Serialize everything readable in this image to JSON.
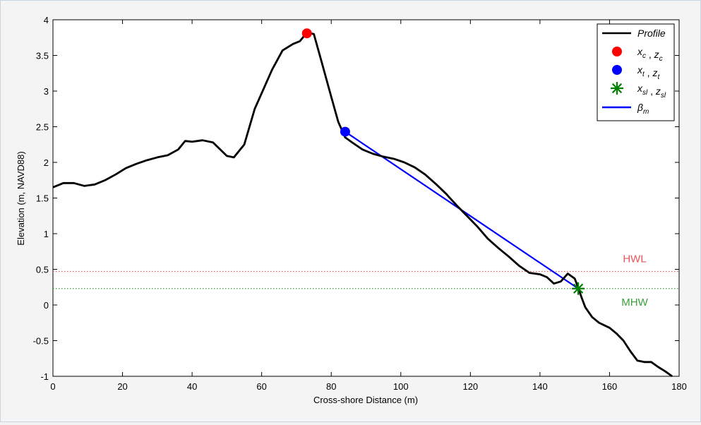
{
  "chart_data": {
    "type": "line",
    "xlabel": "Cross-shore Distance (m)",
    "ylabel": "Elevation (m, NAVD88)",
    "xlim": [
      0,
      180
    ],
    "ylim": [
      -1,
      4
    ],
    "xticks": [
      0,
      20,
      40,
      60,
      80,
      100,
      120,
      140,
      160,
      180
    ],
    "yticks": [
      -1,
      -0.5,
      0,
      0.5,
      1,
      1.5,
      2,
      2.5,
      3,
      3.5,
      4
    ],
    "xtick_labels": [
      "0",
      "20",
      "40",
      "60",
      "80",
      "100",
      "120",
      "140",
      "160",
      "180"
    ],
    "ytick_labels": [
      "-1",
      "-0.5",
      "0",
      "0.5",
      "1",
      "1.5",
      "2",
      "2.5",
      "3",
      "3.5",
      "4"
    ],
    "grid": false,
    "legend_placement": "top-right",
    "series": [
      {
        "name": "Profile",
        "kind": "line",
        "color": "#000000",
        "x": [
          0,
          3,
          6,
          9,
          12,
          15,
          18,
          21,
          24,
          27,
          30,
          33,
          36,
          38,
          40,
          43,
          46,
          50,
          52,
          55,
          58,
          60,
          63,
          66,
          69,
          71,
          73,
          75,
          77,
          80,
          82,
          84,
          86,
          89,
          92,
          95,
          98,
          101,
          104,
          107,
          110,
          113,
          116,
          119,
          122,
          125,
          128,
          131,
          134,
          137,
          140,
          142,
          144,
          146,
          148,
          150,
          151,
          152,
          153,
          155,
          157,
          160,
          162,
          164,
          166,
          168,
          170,
          172,
          174,
          176,
          178
        ],
        "y": [
          1.65,
          1.71,
          1.71,
          1.67,
          1.69,
          1.75,
          1.83,
          1.92,
          1.98,
          2.03,
          2.07,
          2.1,
          2.18,
          2.3,
          2.29,
          2.31,
          2.28,
          2.09,
          2.07,
          2.25,
          2.75,
          2.97,
          3.3,
          3.57,
          3.66,
          3.7,
          3.82,
          3.8,
          3.45,
          2.92,
          2.57,
          2.35,
          2.28,
          2.18,
          2.12,
          2.08,
          2.05,
          2.0,
          1.93,
          1.83,
          1.7,
          1.56,
          1.4,
          1.25,
          1.1,
          0.93,
          0.8,
          0.68,
          0.55,
          0.45,
          0.43,
          0.39,
          0.3,
          0.33,
          0.44,
          0.37,
          0.24,
          0.1,
          -0.03,
          -0.17,
          -0.25,
          -0.32,
          -0.4,
          -0.5,
          -0.65,
          -0.78,
          -0.8,
          -0.8,
          -0.87,
          -0.93,
          -1.0
        ]
      },
      {
        "name": "x_c , z_c",
        "kind": "marker",
        "marker": "circle",
        "color": "#ff0000",
        "x": [
          73
        ],
        "y": [
          3.81
        ]
      },
      {
        "name": "x_t , z_t",
        "kind": "marker",
        "marker": "circle",
        "color": "#0000ff",
        "x": [
          84
        ],
        "y": [
          2.43
        ]
      },
      {
        "name": "x_sl , z_sl",
        "kind": "marker",
        "marker": "asterisk",
        "color": "#008000",
        "x": [
          151
        ],
        "y": [
          0.23
        ]
      },
      {
        "name": "β_m",
        "kind": "line",
        "color": "#0000ff",
        "x": [
          84,
          151
        ],
        "y": [
          2.43,
          0.23
        ]
      }
    ],
    "reference_lines": [
      {
        "label": "HWL",
        "y": 0.47,
        "color": "#e8555a",
        "style": "dotted"
      },
      {
        "label": "MHW",
        "y": 0.23,
        "color": "#3aa03a",
        "style": "dotted"
      }
    ],
    "legend": [
      {
        "kind": "line",
        "color": "#000000",
        "text": "Profile",
        "parts": []
      },
      {
        "kind": "circle",
        "color": "#ff0000",
        "text": "",
        "parts": [
          {
            "base": "x",
            "sub": "c"
          },
          {
            "base": "z",
            "sub": "c"
          }
        ]
      },
      {
        "kind": "circle",
        "color": "#0000ff",
        "text": "",
        "parts": [
          {
            "base": "x",
            "sub": "t"
          },
          {
            "base": "z",
            "sub": "t"
          }
        ]
      },
      {
        "kind": "asterisk",
        "color": "#008000",
        "text": "",
        "parts": [
          {
            "base": "x",
            "sub": "sl"
          },
          {
            "base": "z",
            "sub": "sl"
          }
        ]
      },
      {
        "kind": "line",
        "color": "#0000ff",
        "text": "",
        "parts": [
          {
            "base": "β",
            "sub": "m"
          }
        ]
      }
    ]
  }
}
